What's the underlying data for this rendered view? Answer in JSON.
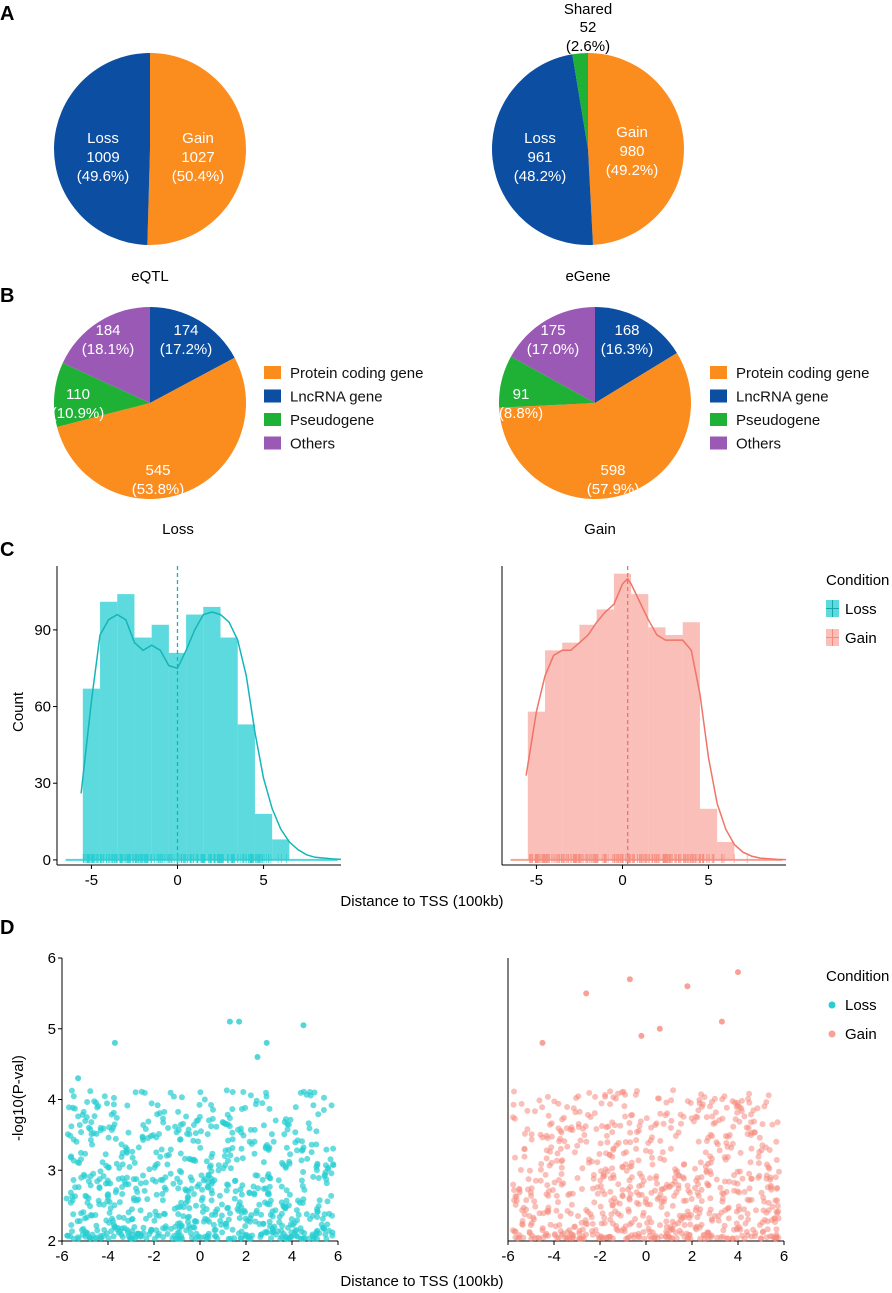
{
  "colors": {
    "loss_blue": "#0b4ea2",
    "gain_orange": "#fb8c1e",
    "green": "#1fb036",
    "purple": "#9b59b6",
    "teal": "#26cdd1",
    "salmon": "#f58a7d"
  },
  "panels": {
    "A": "A",
    "B": "B",
    "C": "C",
    "D": "D"
  },
  "chart_data": [
    {
      "id": "A_eqtl",
      "type": "pie",
      "title": "eQTL",
      "slices": [
        {
          "name": "Gain",
          "value": 1027,
          "pct": "(50.4%)",
          "color": "#fb8c1e"
        },
        {
          "name": "Loss",
          "value": 1009,
          "pct": "(49.6%)",
          "color": "#0b4ea2"
        }
      ]
    },
    {
      "id": "A_egene",
      "type": "pie",
      "title": "eGene",
      "slices": [
        {
          "name": "Gain",
          "value": 980,
          "pct": "(49.2%)",
          "color": "#fb8c1e"
        },
        {
          "name": "Loss",
          "value": 961,
          "pct": "(48.2%)",
          "color": "#0b4ea2"
        },
        {
          "name": "Shared",
          "value": 52,
          "pct": "(2.6%)",
          "color": "#1fb036"
        }
      ]
    },
    {
      "id": "B_loss",
      "type": "pie",
      "title": "Loss",
      "slices": [
        {
          "name": "LncRNA gene",
          "value": 174,
          "pct": "(17.2%)",
          "color": "#0b4ea2"
        },
        {
          "name": "Protein coding gene",
          "value": 545,
          "pct": "(53.8%)",
          "color": "#fb8c1e"
        },
        {
          "name": "Pseudogene",
          "value": 110,
          "pct": "(10.9%)",
          "color": "#1fb036"
        },
        {
          "name": "Others",
          "value": 184,
          "pct": "(18.1%)",
          "color": "#9b59b6"
        }
      ],
      "legend": [
        "Protein coding gene",
        "LncRNA gene",
        "Pseudogene",
        "Others"
      ]
    },
    {
      "id": "B_gain",
      "type": "pie",
      "title": "Gain",
      "slices": [
        {
          "name": "LncRNA gene",
          "value": 168,
          "pct": "(16.3%)",
          "color": "#0b4ea2"
        },
        {
          "name": "Protein coding gene",
          "value": 598,
          "pct": "(57.9%)",
          "color": "#fb8c1e"
        },
        {
          "name": "Pseudogene",
          "value": 91,
          "pct": "(8.8%)",
          "color": "#1fb036"
        },
        {
          "name": "Others",
          "value": 175,
          "pct": "(17.0%)",
          "color": "#9b59b6"
        }
      ],
      "legend": [
        "Protein coding gene",
        "LncRNA gene",
        "Pseudogene",
        "Others"
      ]
    },
    {
      "id": "C",
      "type": "bar",
      "subtype": "histogram",
      "xlabel": "Distance to TSS (100kb)",
      "ylabel": "Count",
      "xlim": [
        -7,
        9.5
      ],
      "ylim": [
        -2,
        115
      ],
      "xticks": [
        -5,
        0,
        5
      ],
      "yticks": [
        0,
        30,
        60,
        90
      ],
      "bin_edges": [
        -5.5,
        -4.5,
        -3.5,
        -2.5,
        -1.5,
        -0.5,
        0.5,
        1.5,
        2.5,
        3.5,
        4.5,
        5.5,
        6.5,
        7.5
      ],
      "legend_title": "Condition",
      "series": [
        {
          "name": "Loss",
          "color": "#26cdd1",
          "mean_line": 0,
          "counts": [
            67,
            101,
            104,
            87,
            92,
            81,
            96,
            99,
            87,
            53,
            18,
            8,
            0
          ],
          "density": [
            [
              -5.6,
              26
            ],
            [
              -5,
              62
            ],
            [
              -4.5,
              88
            ],
            [
              -4,
              94
            ],
            [
              -3.5,
              96
            ],
            [
              -3,
              94
            ],
            [
              -2.5,
              85
            ],
            [
              -2,
              82
            ],
            [
              -1.5,
              84
            ],
            [
              -1,
              82
            ],
            [
              -0.5,
              76
            ],
            [
              0,
              75
            ],
            [
              0.5,
              82
            ],
            [
              1,
              90
            ],
            [
              1.5,
              96
            ],
            [
              2,
              97
            ],
            [
              2.5,
              96
            ],
            [
              3,
              93
            ],
            [
              3.5,
              86
            ],
            [
              4,
              72
            ],
            [
              4.5,
              50
            ],
            [
              5,
              32
            ],
            [
              5.5,
              20
            ],
            [
              6,
              12
            ],
            [
              6.5,
              7
            ],
            [
              7,
              4
            ],
            [
              7.5,
              2
            ],
            [
              8,
              1
            ],
            [
              9,
              0.4
            ],
            [
              9.5,
              0.2
            ]
          ]
        },
        {
          "name": "Gain",
          "color": "#f58a7d",
          "mean_line": 0.3,
          "counts": [
            58,
            82,
            85,
            92,
            98,
            112,
            104,
            91,
            88,
            93,
            20,
            7,
            0
          ],
          "density": [
            [
              -5.6,
              33
            ],
            [
              -5,
              58
            ],
            [
              -4.5,
              72
            ],
            [
              -4,
              80
            ],
            [
              -3.5,
              82
            ],
            [
              -3,
              82
            ],
            [
              -2.5,
              85
            ],
            [
              -2,
              88
            ],
            [
              -1.5,
              93
            ],
            [
              -1,
              97
            ],
            [
              -0.5,
              100
            ],
            [
              0,
              108
            ],
            [
              0.3,
              110
            ],
            [
              0.5,
              108
            ],
            [
              1,
              101
            ],
            [
              1.5,
              94
            ],
            [
              2,
              88
            ],
            [
              2.5,
              86
            ],
            [
              3,
              86
            ],
            [
              3.5,
              86
            ],
            [
              4,
              82
            ],
            [
              4.5,
              65
            ],
            [
              5,
              40
            ],
            [
              5.5,
              22
            ],
            [
              6,
              12
            ],
            [
              6.5,
              6
            ],
            [
              7,
              3
            ],
            [
              7.5,
              1.5
            ],
            [
              8,
              0.7
            ],
            [
              9,
              0.2
            ],
            [
              9.5,
              0.1
            ]
          ]
        }
      ]
    },
    {
      "id": "D",
      "type": "scatter",
      "xlabel": "Distance to TSS (100kb)",
      "ylabel": "-log10(P-val)",
      "xlim": [
        -6,
        6
      ],
      "ylim": [
        2,
        6
      ],
      "xticks": [
        -6,
        -4,
        -2,
        0,
        2,
        4,
        6
      ],
      "yticks": [
        2,
        3,
        4,
        5,
        6
      ],
      "legend_title": "Condition",
      "series": [
        {
          "name": "Loss",
          "color": "#26cdd1",
          "n_points": 1009,
          "range_x": [
            -5.8,
            5.8
          ],
          "highlights": [
            [
              1.3,
              5.1
            ],
            [
              1.7,
              5.1
            ],
            [
              4.5,
              5.05
            ],
            [
              -3.7,
              4.8
            ],
            [
              2.9,
              4.8
            ],
            [
              2.5,
              4.6
            ],
            [
              -5.3,
              4.3
            ]
          ]
        },
        {
          "name": "Gain",
          "color": "#f58a7d",
          "n_points": 1027,
          "range_x": [
            -5.8,
            5.8
          ],
          "highlights": [
            [
              4,
              5.8
            ],
            [
              -0.7,
              5.7
            ],
            [
              1.8,
              5.6
            ],
            [
              -2.6,
              5.5
            ],
            [
              3.3,
              5.1
            ],
            [
              0.6,
              5.0
            ],
            [
              -4.5,
              4.8
            ],
            [
              -0.2,
              4.9
            ]
          ]
        }
      ]
    }
  ],
  "labels": {
    "shared_title": "Shared",
    "shared_value": "52",
    "shared_pct": "(2.6%)",
    "legend_condition": "Condition",
    "legend_loss": "Loss",
    "legend_gain": "Gain"
  }
}
